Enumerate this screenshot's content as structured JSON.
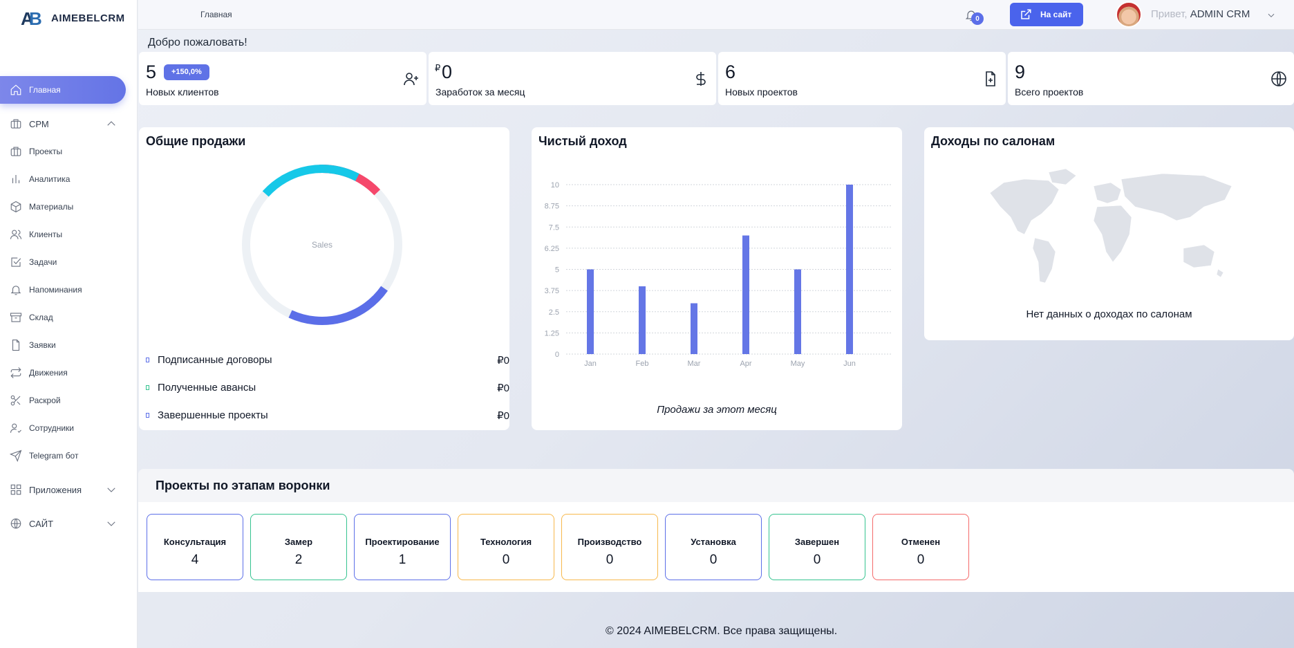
{
  "brand": {
    "name": "AIMEBELCRM"
  },
  "header": {
    "breadcrumb": "Главная",
    "notifications": "0",
    "site_button": "На сайт",
    "greeting": "Привет,",
    "user": "ADMIN CRM"
  },
  "sidebar": {
    "home": "Главная",
    "crm": "СРМ",
    "items": [
      "Проекты",
      "Аналитика",
      "Материалы",
      "Клиенты",
      "Задачи",
      "Напоминания",
      "Склад",
      "Заявки",
      "Движения",
      "Раскрой",
      "Сотрудники",
      "Telegram бот"
    ],
    "apps": "Приложения",
    "site": "САЙТ"
  },
  "welcome": "Добро пожаловать!",
  "stats": [
    {
      "value": "5",
      "badge": "+150,0%",
      "label": "Новых клиентов"
    },
    {
      "currency": "₽",
      "value": "0",
      "label": "Заработок за месяц"
    },
    {
      "value": "6",
      "label": "Новых проектов"
    },
    {
      "value": "9",
      "label": "Всего проектов"
    }
  ],
  "sales": {
    "title": "Общие продажи",
    "center_label": "Sales",
    "legend": [
      {
        "label": "Подписанные договоры",
        "amount": "₽0"
      },
      {
        "label": "Полученные авансы",
        "amount": "₽0"
      },
      {
        "label": "Завершенные проекты",
        "amount": "₽0"
      }
    ]
  },
  "income": {
    "title": "Чистый доход",
    "caption": "Продажи за этот месяц"
  },
  "salons": {
    "title": "Доходы по салонам",
    "empty": "Нет данных о доходах по салонам"
  },
  "chart_data": {
    "type": "bar",
    "title": "Чистый доход",
    "xlabel": "Продажи за этот месяц",
    "ylabel": "",
    "categories": [
      "Jan",
      "Feb",
      "Mar",
      "Apr",
      "May",
      "Jun"
    ],
    "values": [
      5,
      4,
      3,
      7,
      5,
      10
    ],
    "ylim": [
      0,
      10
    ],
    "yticks": [
      "0",
      "1.25",
      "2.5",
      "3.75",
      "5",
      "6.25",
      "7.5",
      "8.75",
      "10"
    ],
    "color": "#6476e6"
  },
  "funnel": {
    "title": "Проекты по этапам воронки",
    "stages": [
      {
        "name": "Консультация",
        "count": "4",
        "color": "#5b6ee8"
      },
      {
        "name": "Замер",
        "count": "2",
        "color": "#34c38f"
      },
      {
        "name": "Проектирование",
        "count": "1",
        "color": "#5b6ee8"
      },
      {
        "name": "Технология",
        "count": "0",
        "color": "#f7b84b"
      },
      {
        "name": "Производство",
        "count": "0",
        "color": "#f7b84b"
      },
      {
        "name": "Установка",
        "count": "0",
        "color": "#5b6ee8"
      },
      {
        "name": "Завершен",
        "count": "0",
        "color": "#34c38f"
      },
      {
        "name": "Отменен",
        "count": "0",
        "color": "#f46a6a"
      }
    ]
  },
  "footer": "© 2024 AIMEBELCRM. Все права защищены."
}
